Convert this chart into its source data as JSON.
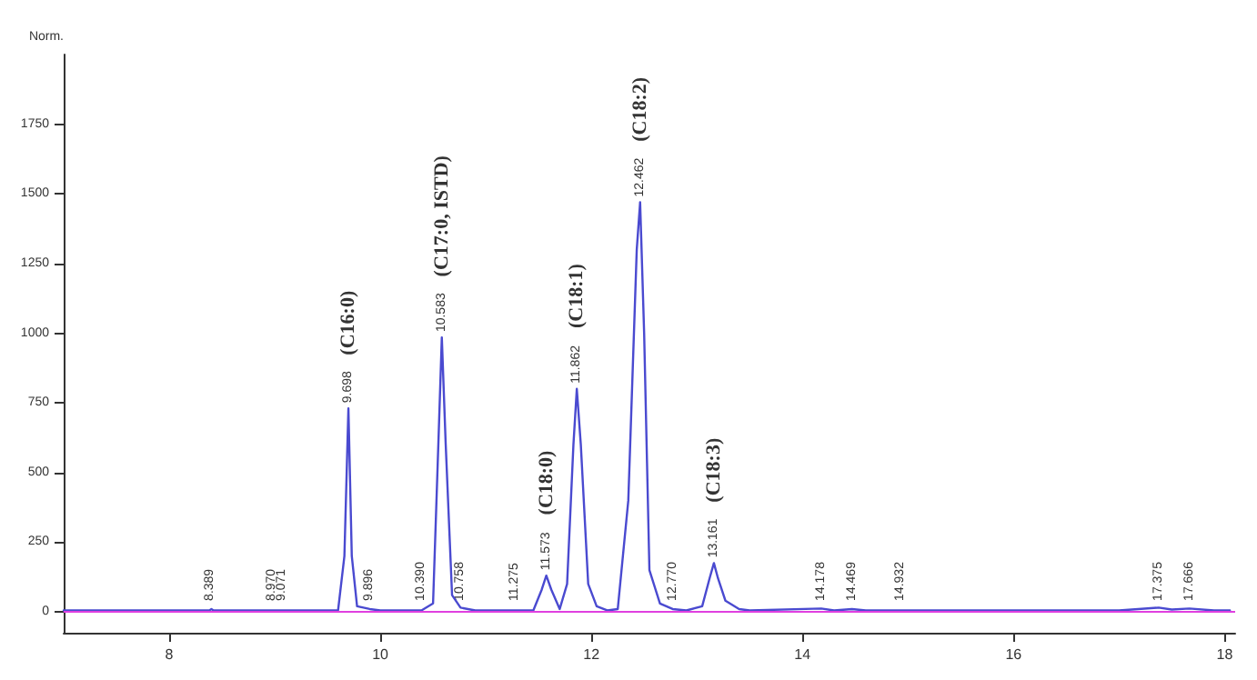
{
  "chart_data": {
    "type": "line",
    "ylabel": "Norm.",
    "xlim": [
      7,
      18.1
    ],
    "xticks": [
      8,
      10,
      12,
      14,
      16,
      18
    ],
    "ylim": [
      -75,
      2000
    ],
    "yticks": [
      0,
      250,
      500,
      750,
      1000,
      1250,
      1500,
      1750
    ],
    "grid": false,
    "marker": "none",
    "line_style": "solid",
    "series": [
      {
        "color": "#4a4ad0",
        "x": [
          7.0,
          8.38,
          8.4,
          8.42,
          9.6,
          9.66,
          9.698,
          9.73,
          9.78,
          9.9,
          10.0,
          10.39,
          10.5,
          10.55,
          10.583,
          10.62,
          10.68,
          10.76,
          10.9,
          11.45,
          11.53,
          11.573,
          11.62,
          11.7,
          11.77,
          11.83,
          11.862,
          11.9,
          11.97,
          12.05,
          12.15,
          12.25,
          12.35,
          12.43,
          12.462,
          12.5,
          12.55,
          12.65,
          12.77,
          12.9,
          13.05,
          13.12,
          13.161,
          13.2,
          13.27,
          13.4,
          13.5,
          14.178,
          14.3,
          14.469,
          14.6,
          17.0,
          17.375,
          17.5,
          17.666,
          17.9,
          18.05
        ],
        "values": [
          5,
          5,
          10,
          5,
          5,
          200,
          730,
          200,
          20,
          10,
          5,
          5,
          30,
          600,
          985,
          600,
          60,
          15,
          5,
          5,
          80,
          130,
          80,
          10,
          100,
          600,
          800,
          600,
          100,
          20,
          5,
          10,
          400,
          1300,
          1470,
          1000,
          150,
          30,
          10,
          5,
          20,
          120,
          175,
          120,
          40,
          10,
          5,
          12,
          5,
          10,
          5,
          5,
          15,
          8,
          12,
          5,
          5
        ]
      }
    ],
    "ref_lines": [
      {
        "axis": "y",
        "value": 0,
        "color": "#e040e0"
      }
    ],
    "annotations": [
      {
        "text": "8.389",
        "x": 8.389,
        "y": 20
      },
      {
        "text": "8.970",
        "x": 8.97,
        "y": 20
      },
      {
        "text": "9.071",
        "x": 9.071,
        "y": 20
      },
      {
        "text": "9.698",
        "x": 9.698,
        "y": 730
      },
      "(C16:0)",
      {
        "text": "9.896",
        "x": 9.896,
        "y": 20
      },
      {
        "text": "10.390",
        "x": 10.39,
        "y": 20
      },
      {
        "text": "10.583",
        "x": 10.583,
        "y": 985
      },
      "(C17:0, ISTD)",
      {
        "text": "10.758",
        "x": 10.758,
        "y": 20
      },
      {
        "text": "11.275",
        "x": 11.275,
        "y": 20
      },
      {
        "text": "11.573",
        "x": 11.573,
        "y": 130
      },
      "(C18:0)",
      {
        "text": "11.862",
        "x": 11.862,
        "y": 800
      },
      "(C18:1)",
      {
        "text": "12.462",
        "x": 12.462,
        "y": 1470
      },
      "(C18:2)",
      {
        "text": "12.770",
        "x": 12.77,
        "y": 20
      },
      {
        "text": "13.161",
        "x": 13.161,
        "y": 175
      },
      "(C18:3)",
      {
        "text": "14.178",
        "x": 14.178,
        "y": 20
      },
      {
        "text": "14.469",
        "x": 14.469,
        "y": 20
      },
      {
        "text": "14.932",
        "x": 14.932,
        "y": 20
      },
      {
        "text": "17.375",
        "x": 17.375,
        "y": 20
      },
      {
        "text": "17.666",
        "x": 17.666,
        "y": 20
      }
    ]
  }
}
